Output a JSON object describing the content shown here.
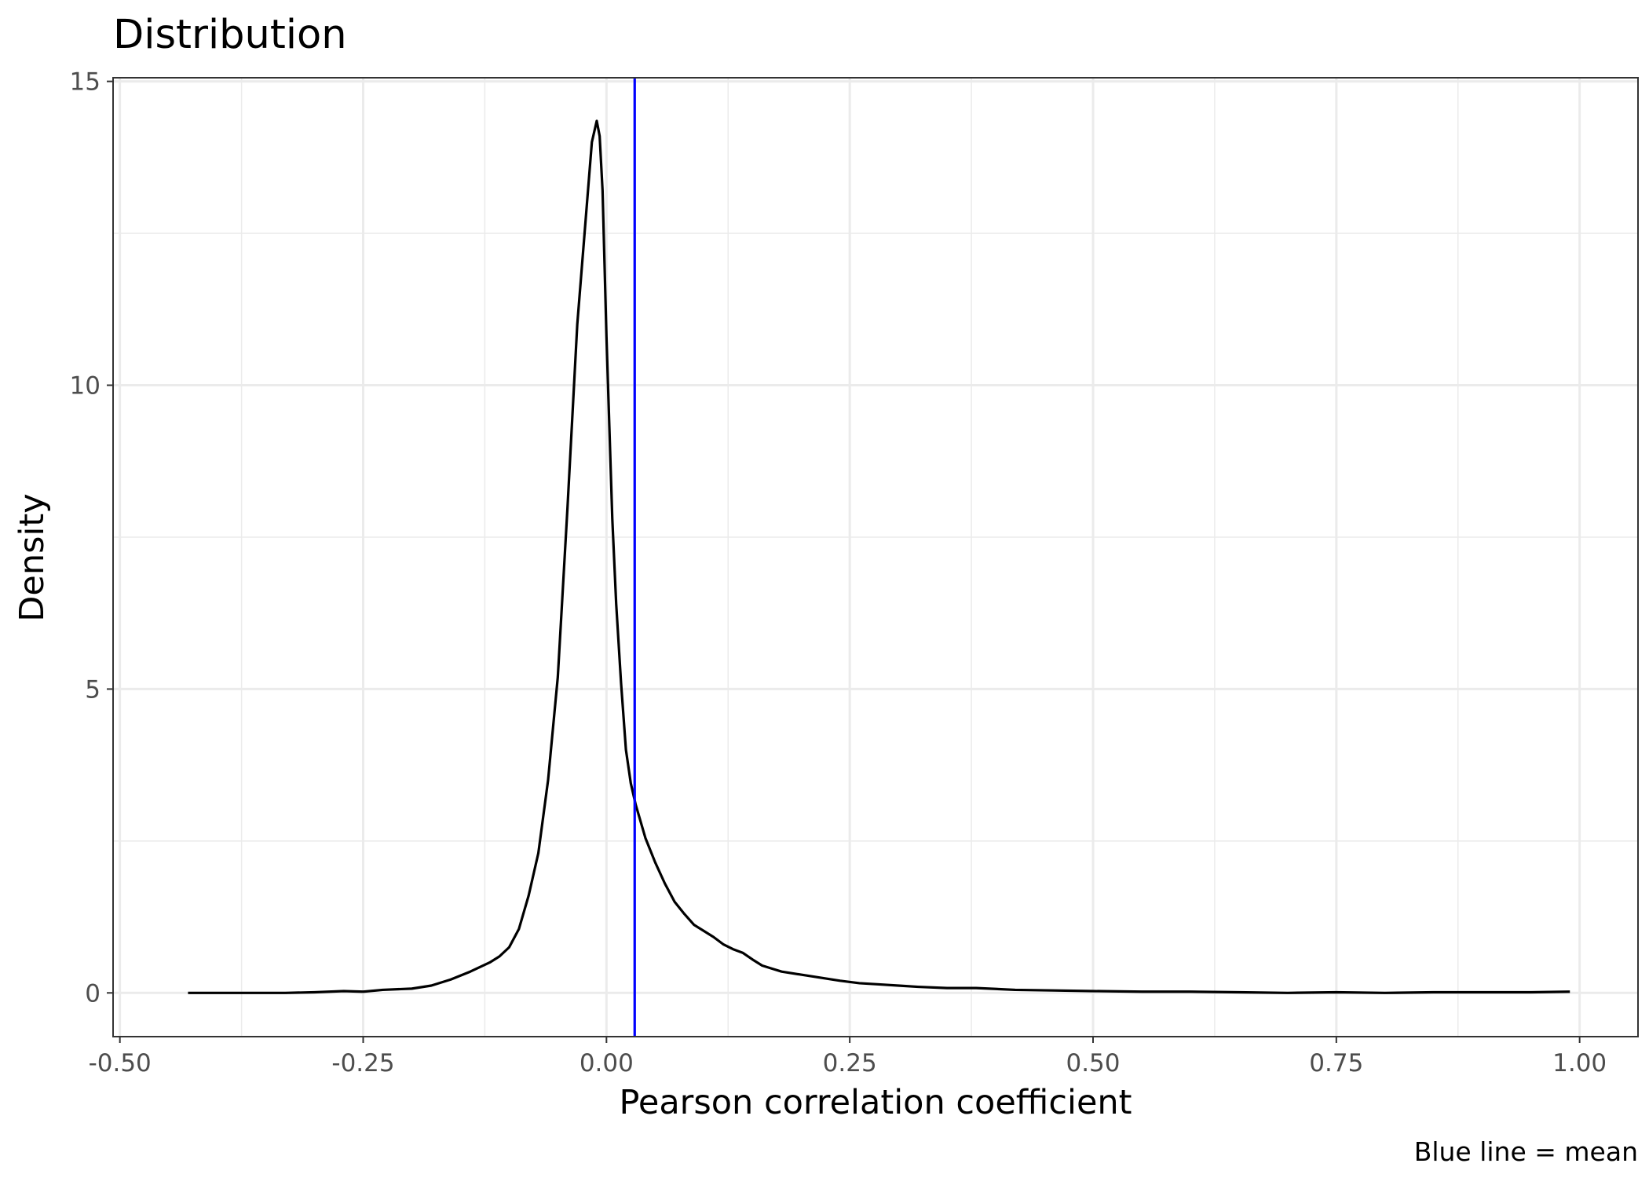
{
  "chart_data": {
    "type": "line",
    "title": "Distribution",
    "xlabel": "Pearson correlation coefficient",
    "ylabel": "Density",
    "caption": "Blue line = mean",
    "xlim": [
      -0.507,
      1.06
    ],
    "ylim": [
      -0.72,
      15.06
    ],
    "x_ticks": [
      -0.5,
      -0.25,
      0.0,
      0.25,
      0.5,
      0.75,
      1.0
    ],
    "x_tick_labels": [
      "-0.50",
      "-0.25",
      "0.00",
      "0.25",
      "0.50",
      "0.75",
      "1.00"
    ],
    "y_ticks": [
      0,
      5,
      10,
      15
    ],
    "y_tick_labels": [
      "0",
      "5",
      "10",
      "15"
    ],
    "grid": true,
    "mean_line": {
      "x": 0.029,
      "color": "#0000ff"
    },
    "series": [
      {
        "color": "#000000",
        "x": [
          -0.43,
          -0.4,
          -0.37,
          -0.35,
          -0.33,
          -0.3,
          -0.27,
          -0.25,
          -0.23,
          -0.2,
          -0.18,
          -0.16,
          -0.14,
          -0.12,
          -0.11,
          -0.1,
          -0.09,
          -0.08,
          -0.07,
          -0.06,
          -0.05,
          -0.04,
          -0.03,
          -0.02,
          -0.015,
          -0.01,
          -0.007,
          -0.004,
          -0.002,
          0.0,
          0.003,
          0.006,
          0.01,
          0.015,
          0.02,
          0.025,
          0.03,
          0.04,
          0.05,
          0.06,
          0.07,
          0.08,
          0.09,
          0.1,
          0.11,
          0.12,
          0.13,
          0.14,
          0.15,
          0.16,
          0.17,
          0.18,
          0.2,
          0.22,
          0.24,
          0.26,
          0.28,
          0.3,
          0.32,
          0.35,
          0.38,
          0.42,
          0.46,
          0.5,
          0.55,
          0.6,
          0.65,
          0.7,
          0.75,
          0.8,
          0.85,
          0.9,
          0.95,
          0.99
        ],
        "y": [
          0.0,
          0.0,
          0.0,
          0.0,
          0.0,
          0.01,
          0.03,
          0.02,
          0.05,
          0.07,
          0.12,
          0.22,
          0.35,
          0.5,
          0.6,
          0.75,
          1.05,
          1.6,
          2.3,
          3.5,
          5.2,
          8.0,
          11.0,
          13.0,
          14.0,
          14.35,
          14.1,
          13.2,
          12.0,
          10.8,
          9.3,
          7.8,
          6.4,
          5.1,
          4.0,
          3.45,
          3.1,
          2.55,
          2.15,
          1.8,
          1.5,
          1.3,
          1.12,
          1.02,
          0.92,
          0.8,
          0.72,
          0.66,
          0.55,
          0.45,
          0.4,
          0.35,
          0.3,
          0.25,
          0.2,
          0.16,
          0.14,
          0.12,
          0.1,
          0.08,
          0.08,
          0.05,
          0.04,
          0.03,
          0.02,
          0.02,
          0.01,
          0.0,
          0.01,
          0.0,
          0.01,
          0.01,
          0.01,
          0.02
        ]
      }
    ]
  }
}
